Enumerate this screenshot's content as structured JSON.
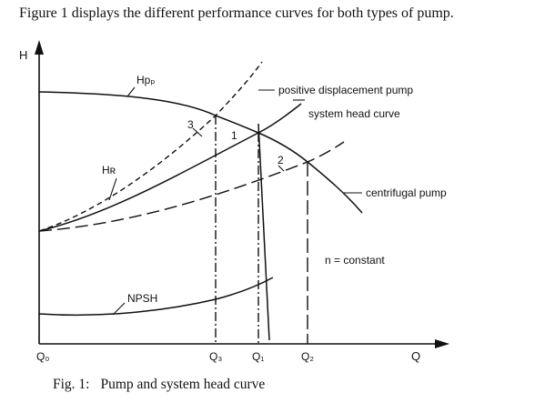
{
  "intro_text": "Figure 1 displays the different performance curves for both types of pump.",
  "caption": {
    "label": "Fig. 1:",
    "text": "Pump and system head curve"
  },
  "axes": {
    "y_label": "H",
    "x_label": "Q",
    "origin_label": "Q₀"
  },
  "x_ticks": {
    "q3": "Q₃",
    "q1": "Q₁",
    "q2": "Q₂"
  },
  "curve_labels": {
    "hpp": "Hpₚ",
    "hr": "Hʀ",
    "npsh": "NPSH"
  },
  "points": {
    "p1": "1",
    "p2": "2",
    "p3": "3"
  },
  "annotations": {
    "positive_displacement_pump": "positive displacement pump",
    "system_head_curve": "system head curve",
    "centrifugal_pump": "centrifugal pump",
    "n_constant": "n = constant"
  }
}
